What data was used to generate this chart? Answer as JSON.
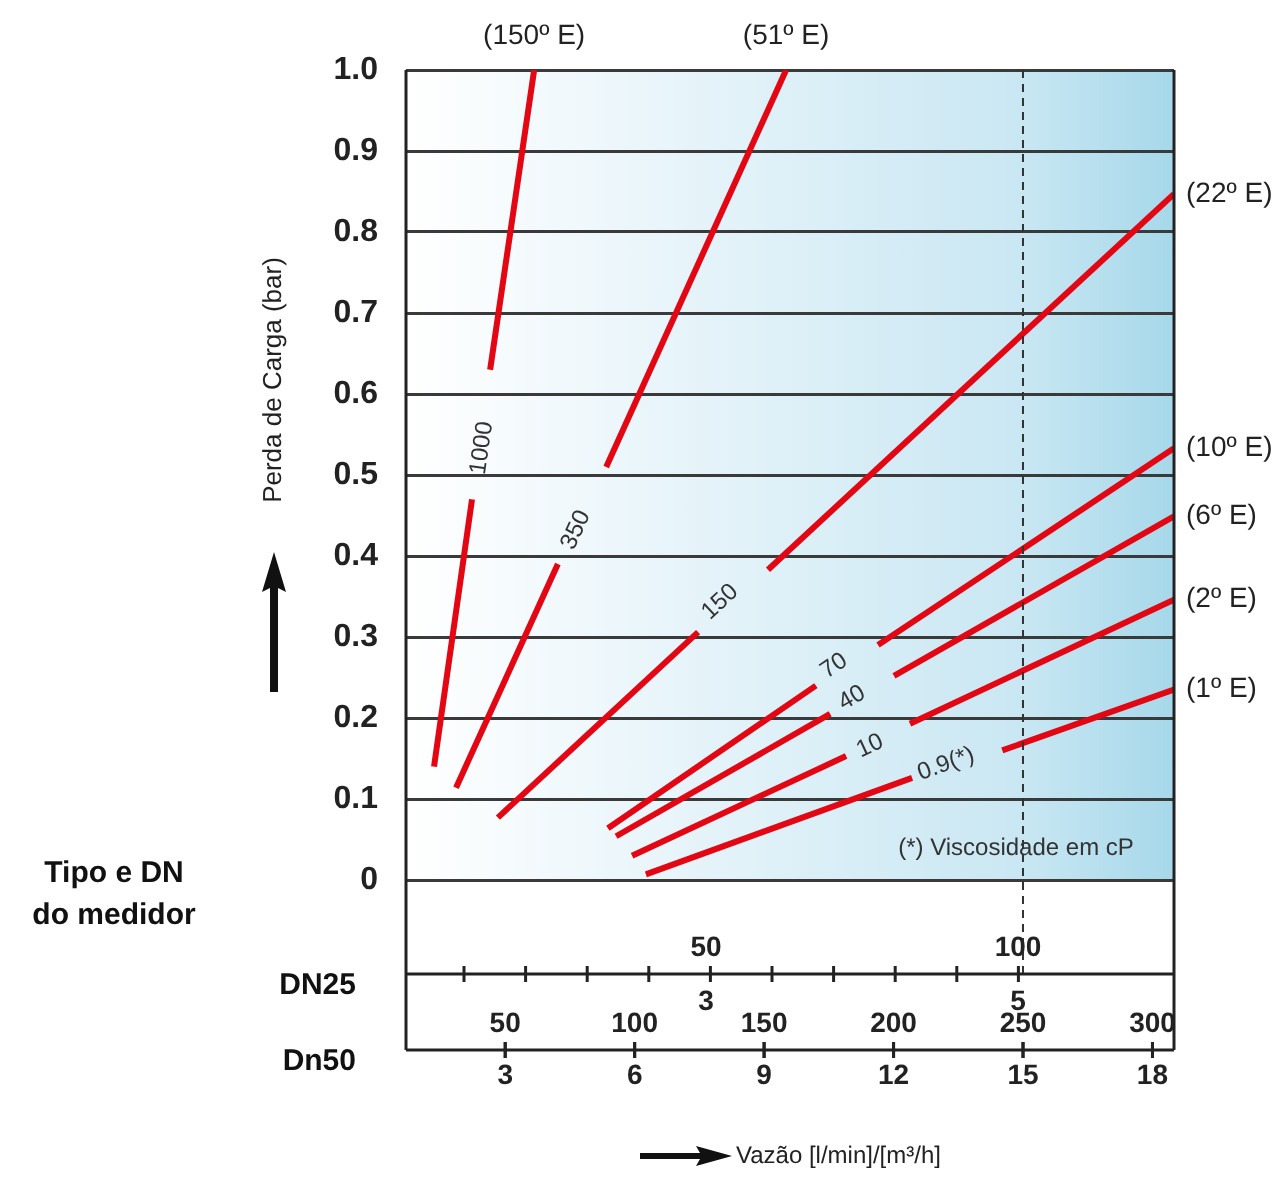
{
  "chart_data": {
    "type": "line",
    "ylabel": "Perda de Carga (bar)",
    "xlabel": "Vazão [l/min]/[m³/h]",
    "xlim": [
      0.7,
      18.5
    ],
    "xticks": [
      3,
      6,
      9,
      12,
      15,
      18
    ],
    "x2lim": [
      11.7,
      308.3
    ],
    "x2ticks": [
      50,
      100,
      150,
      200,
      250,
      300
    ],
    "ylim": [
      0,
      1
    ],
    "yticks": [
      0,
      0.1,
      0.2,
      0.3,
      0.4,
      0.5,
      0.6,
      0.7,
      0.8,
      0.9,
      {
        "value": 1,
        "label": "1.0"
      }
    ],
    "grid": "y",
    "legend": false,
    "marker": "none",
    "line_style": "solid",
    "series": [
      {
        "name": "(150º E)",
        "color": "#e30613",
        "x": [
          1.35,
          2.23,
          2.51,
          2.65,
          3.67
        ],
        "values": [
          0.14,
          0.47,
          null,
          0.63,
          1.0
        ]
      },
      {
        "name": "(51º E)",
        "color": "#e30613",
        "x": [
          1.86,
          4.22,
          4.64,
          5.34,
          9.51
        ],
        "values": [
          0.114,
          0.39,
          null,
          0.51,
          1.0
        ]
      },
      {
        "name": "(22º E)",
        "color": "#e30613",
        "x": [
          2.83,
          7.47,
          7.98,
          9.09,
          18.5
        ],
        "values": [
          0.077,
          0.306,
          null,
          0.383,
          0.847
        ]
      },
      {
        "name": "(10º E)",
        "color": "#e30613",
        "x": [
          5.38,
          10.2,
          10.67,
          11.64,
          18.5
        ],
        "values": [
          0.064,
          0.24,
          null,
          0.29,
          0.533
        ]
      },
      {
        "name": "(6º E)",
        "color": "#e30613",
        "x": [
          5.57,
          10.53,
          11.04,
          12.01,
          18.5
        ],
        "values": [
          0.054,
          0.205,
          null,
          0.252,
          0.449
        ]
      },
      {
        "name": "(2º E)",
        "color": "#e30613",
        "x": [
          5.94,
          10.9,
          11.46,
          12.38,
          18.5
        ],
        "values": [
          0.03,
          0.153,
          null,
          0.193,
          0.346
        ]
      },
      {
        "name": "(1º E)",
        "color": "#e30613",
        "x": [
          6.26,
          12.43,
          13.31,
          14.52,
          18.5
        ],
        "values": [
          0.007,
          0.126,
          null,
          0.16,
          0.235
        ]
      }
    ],
    "annotations": [
      "1000",
      "350",
      "150",
      "70",
      "40",
      "10",
      "0.9(*)",
      "Tipo e DN do medidor",
      "DN25",
      "Dn50",
      "(*) Viscosidade em cP",
      "50",
      "100",
      "3",
      "5"
    ],
    "ref_lines": [
      {
        "axis": "x",
        "value": 15,
        "line_style": "dashed",
        "color": "#333333"
      }
    ],
    "bands": [
      {
        "axis": "x",
        "from": 0.7,
        "to": 15,
        "color": "#c9e7f3"
      },
      {
        "axis": "x",
        "from": 15,
        "to": 18.5,
        "color": "#a6d8ea"
      }
    ]
  }
}
